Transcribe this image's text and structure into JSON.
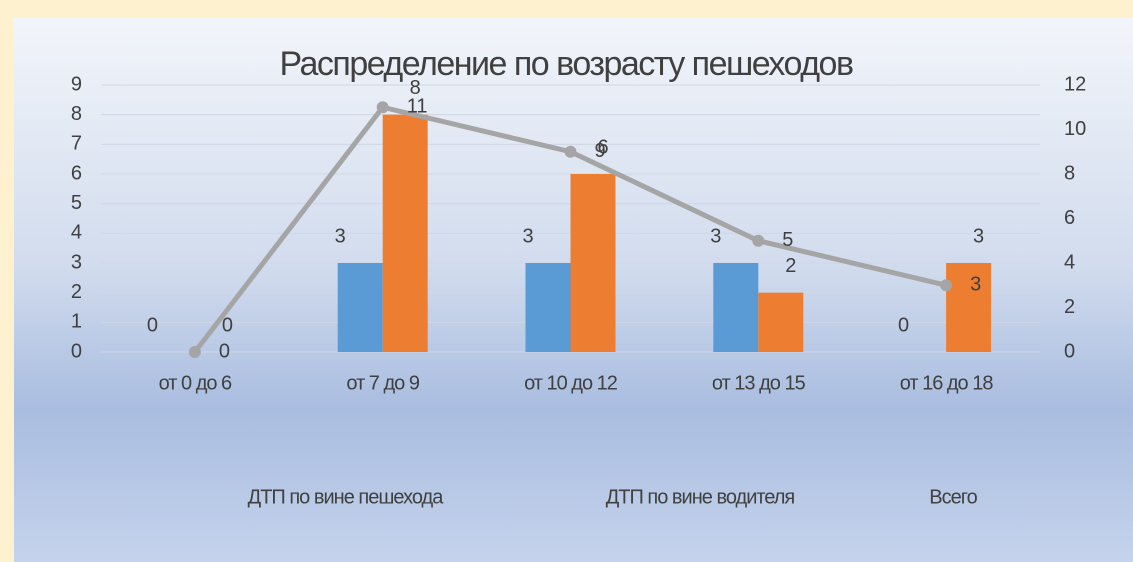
{
  "chart_data": {
    "type": "bar",
    "title": "Распределение по возрасту пешеходов",
    "categories": [
      "от 0 до 6",
      "от 7 до 9",
      "от 10 до 12",
      "от 13 до 15",
      "от 16 до 18"
    ],
    "series": [
      {
        "name": "ДТП по вине пешехода",
        "color": "#5b9bd5",
        "values": [
          0,
          3,
          3,
          3,
          0
        ]
      },
      {
        "name": "ДТП по вине водителя",
        "color": "#ed7d31",
        "values": [
          0,
          8,
          6,
          2,
          3
        ]
      },
      {
        "name": "Всего",
        "color": "#a5a5a5",
        "type": "line",
        "axis": "y2",
        "values": [
          0,
          11,
          9,
          5,
          3
        ]
      }
    ],
    "ylim": [
      0,
      9
    ],
    "yticks": [
      0,
      1,
      2,
      3,
      4,
      5,
      6,
      7,
      8,
      9
    ],
    "y2lim": [
      0,
      12
    ],
    "y2ticks": [
      0,
      2,
      4,
      6,
      8,
      10,
      12
    ],
    "grid": true,
    "legend": "bottom"
  }
}
